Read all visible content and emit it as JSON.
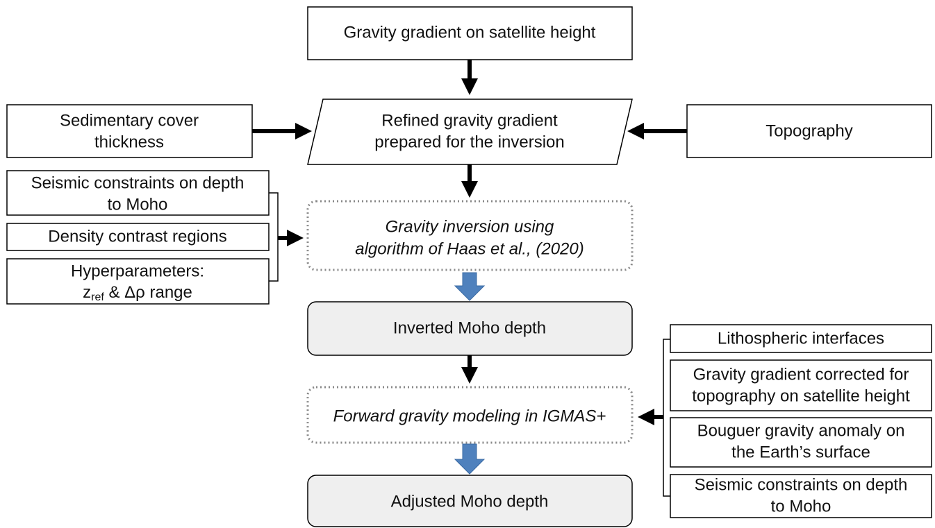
{
  "nodes": [
    {
      "lines": [
        "Gravity gradient on satellite height"
      ]
    },
    {
      "lines": [
        "Refined gravity gradient",
        "prepared for the inversion"
      ]
    },
    {
      "lines": [
        "Sedimentary cover",
        "thickness"
      ]
    },
    {
      "lines": [
        "Topography"
      ]
    },
    {
      "lines": [
        "Seismic constraints on depth",
        "to Moho"
      ]
    },
    {
      "lines": [
        "Density contrast regions"
      ]
    },
    {
      "lines": [
        "Hyperparameters:",
        {
          "base": "z",
          "sub": "ref",
          "rest": " & Δρ range"
        }
      ]
    },
    {
      "lines": [
        "Gravity inversion using",
        "algorithm of Haas et al., (2020)"
      ]
    },
    {
      "lines": [
        "Inverted Moho depth"
      ]
    },
    {
      "lines": [
        "Lithospheric interfaces"
      ]
    },
    {
      "lines": [
        "Gravity gradient corrected for",
        "topography on satellite height"
      ]
    },
    {
      "lines": [
        "Bouguer gravity anomaly on",
        "the Earth’s surface"
      ]
    },
    {
      "lines": [
        "Seismic constraints on depth",
        "to Moho"
      ]
    },
    {
      "lines": [
        "Forward gravity modeling in IGMAS+"
      ]
    },
    {
      "lines": [
        "Adjusted Moho depth"
      ]
    }
  ]
}
